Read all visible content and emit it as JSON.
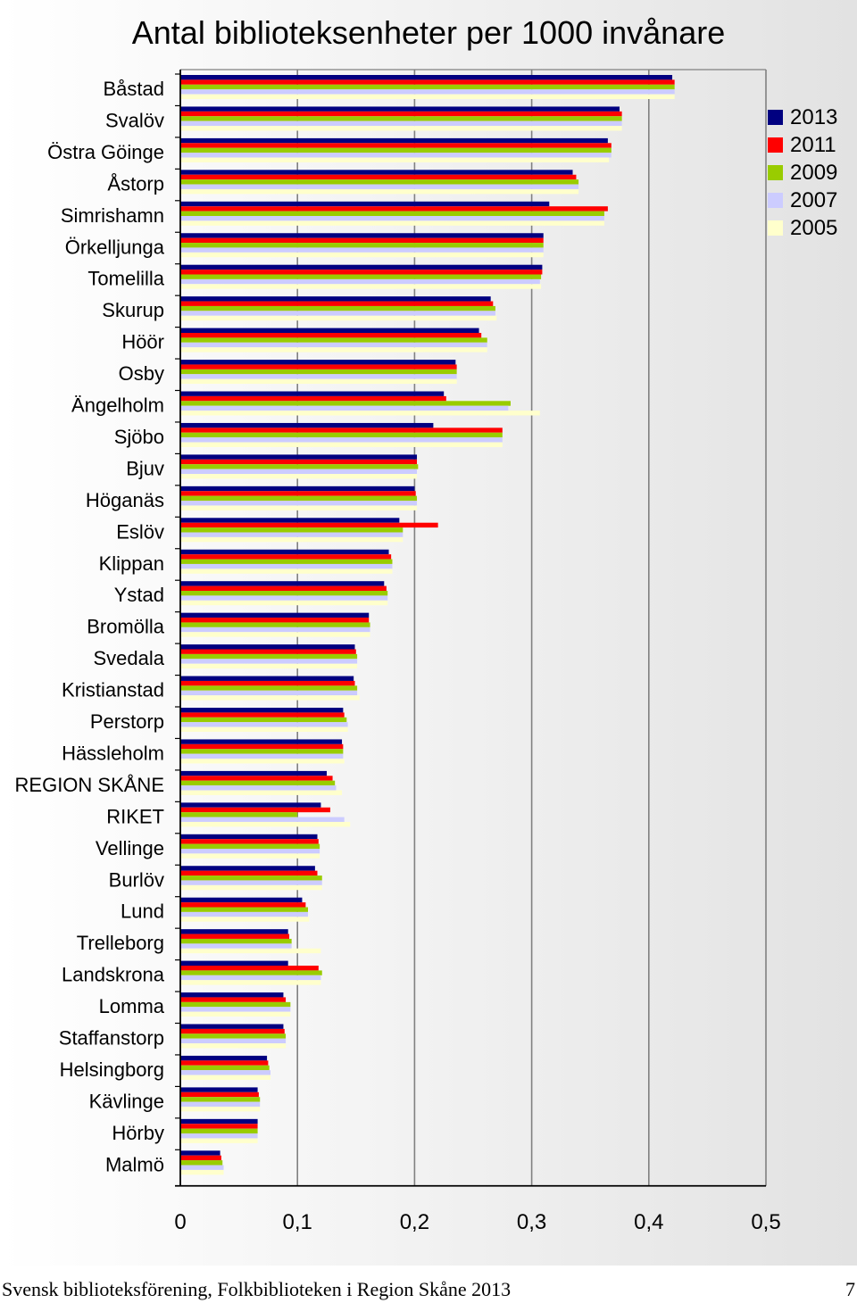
{
  "chart_data": {
    "type": "bar",
    "orientation": "horizontal",
    "title": "Antal biblioteksenheter per 1000 invånare",
    "xlabel": "",
    "ylabel": "",
    "xlim": [
      0,
      0.5
    ],
    "x_ticks": [
      "0",
      "0,1",
      "0,2",
      "0,3",
      "0,4",
      "0,5"
    ],
    "grid": true,
    "legend_position": "right",
    "categories": [
      "Båstad",
      "Svalöv",
      "Östra Göinge",
      "Åstorp",
      "Simrishamn",
      "Örkelljunga",
      "Tomelilla",
      "Skurup",
      "Höör",
      "Osby",
      "Ängelholm",
      "Sjöbo",
      "Bjuv",
      "Höganäs",
      "Eslöv",
      "Klippan",
      "Ystad",
      "Bromölla",
      "Svedala",
      "Kristianstad",
      "Perstorp",
      "Hässleholm",
      "REGION SKÅNE",
      "RIKET",
      "Vellinge",
      "Burlöv",
      "Lund",
      "Trelleborg",
      "Landskrona",
      "Lomma",
      "Staffanstorp",
      "Helsingborg",
      "Kävlinge",
      "Hörby",
      "Malmö"
    ],
    "series": [
      {
        "name": "2013",
        "color": "#000080",
        "values": [
          0.42,
          0.375,
          0.365,
          0.335,
          0.315,
          0.31,
          0.309,
          0.265,
          0.255,
          0.235,
          0.225,
          0.216,
          0.202,
          0.2,
          0.187,
          0.178,
          0.174,
          0.161,
          0.149,
          0.148,
          0.139,
          0.138,
          0.125,
          0.12,
          0.117,
          0.115,
          0.104,
          0.092,
          0.092,
          0.088,
          0.088,
          0.074,
          0.066,
          0.066,
          0.034
        ]
      },
      {
        "name": "2011",
        "color": "#ff0000",
        "values": [
          0.422,
          0.377,
          0.368,
          0.338,
          0.365,
          0.31,
          0.309,
          0.267,
          0.257,
          0.236,
          0.227,
          0.275,
          0.202,
          0.201,
          0.22,
          0.18,
          0.176,
          0.161,
          0.15,
          0.149,
          0.14,
          0.139,
          0.13,
          0.128,
          0.118,
          0.117,
          0.107,
          0.093,
          0.118,
          0.09,
          0.089,
          0.075,
          0.067,
          0.066,
          0.035
        ]
      },
      {
        "name": "2009",
        "color": "#99cc00",
        "values": [
          0.422,
          0.377,
          0.368,
          0.34,
          0.362,
          0.31,
          0.308,
          0.269,
          0.262,
          0.236,
          0.282,
          0.275,
          0.203,
          0.202,
          0.19,
          0.181,
          0.177,
          0.162,
          0.151,
          0.151,
          0.142,
          0.139,
          0.132,
          0.1,
          0.119,
          0.121,
          0.109,
          0.095,
          0.121,
          0.094,
          0.09,
          0.076,
          0.068,
          0.066,
          0.036
        ]
      },
      {
        "name": "2007",
        "color": "#ccccff",
        "values": [
          0.422,
          0.377,
          0.368,
          0.34,
          0.362,
          0.31,
          0.307,
          0.269,
          0.262,
          0.236,
          0.28,
          0.275,
          0.202,
          0.202,
          0.19,
          0.181,
          0.177,
          0.162,
          0.151,
          0.151,
          0.143,
          0.139,
          0.133,
          0.14,
          0.119,
          0.121,
          0.109,
          0.095,
          0.12,
          0.094,
          0.09,
          0.077,
          0.068,
          0.066,
          0.037
        ]
      },
      {
        "name": "2005",
        "color": "#ffffcc",
        "values": [
          0.422,
          0.377,
          0.366,
          0.34,
          0.362,
          0.31,
          0.308,
          0.27,
          0.262,
          0.236,
          0.307,
          0.275,
          0.202,
          0.202,
          0.19,
          0.181,
          0.177,
          0.162,
          0.151,
          0.153,
          0.143,
          0.14,
          0.138,
          0.145,
          0.119,
          0.121,
          0.11,
          0.12,
          0.12,
          0.094,
          0.09,
          0.077,
          0.068,
          0.066,
          0.037
        ]
      }
    ]
  },
  "footer": {
    "text": "Svensk biblioteksförening, Folkbiblioteken i Region Skåne 2013",
    "page_number": "7"
  }
}
